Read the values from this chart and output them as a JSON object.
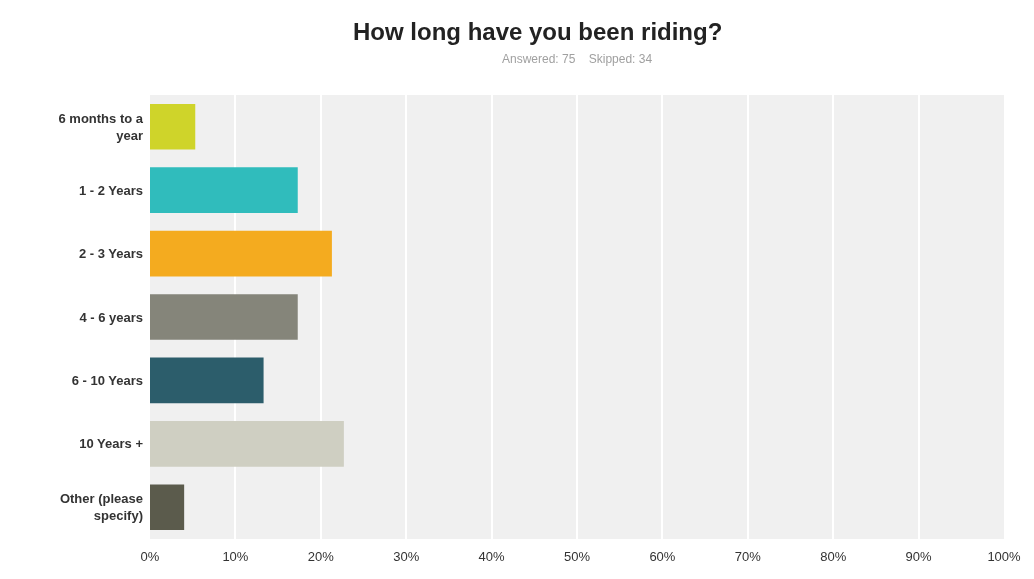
{
  "chart_data": {
    "type": "bar",
    "orientation": "horizontal",
    "title": "How long have you been riding?",
    "subtitle": "Answered: 75    Skipped: 34",
    "categories": [
      "6 months to a year",
      "1 - 2 Years",
      "2 - 3 Years",
      "4 - 6 years",
      "6 - 10 Years",
      "10 Years +",
      "Other (please specify)"
    ],
    "values": [
      5.3,
      17.3,
      21.3,
      17.3,
      13.3,
      22.7,
      4.0
    ],
    "colors": [
      "#cfd42a",
      "#30bcbc",
      "#f4ab1f",
      "#85857a",
      "#2c5d6b",
      "#cfcfc2",
      "#5b5b4c"
    ],
    "xlim": [
      0,
      100
    ],
    "xticks": [
      {
        "value": 0,
        "label": "0%"
      },
      {
        "value": 10,
        "label": "10%"
      },
      {
        "value": 20,
        "label": "20%"
      },
      {
        "value": 30,
        "label": "30%"
      },
      {
        "value": 40,
        "label": "40%"
      },
      {
        "value": 50,
        "label": "50%"
      },
      {
        "value": 60,
        "label": "60%"
      },
      {
        "value": 70,
        "label": "70%"
      },
      {
        "value": 80,
        "label": "80%"
      },
      {
        "value": 90,
        "label": "90%"
      },
      {
        "value": 100,
        "label": "100%"
      }
    ],
    "grid": "x"
  }
}
